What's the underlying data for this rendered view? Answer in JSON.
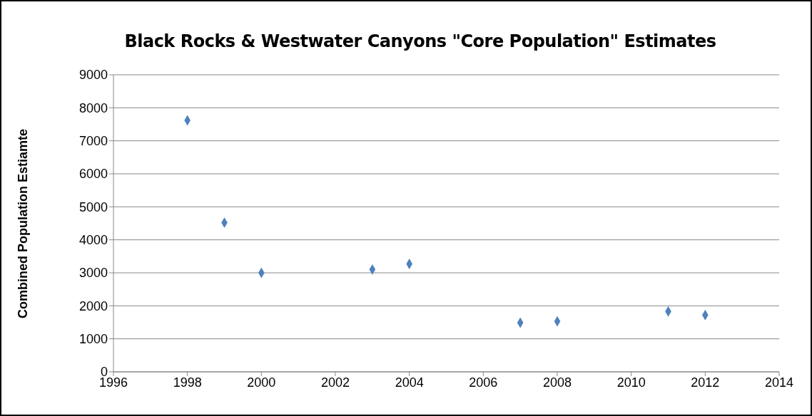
{
  "chart_data": {
    "type": "scatter",
    "title": "Black Rocks & Westwater Canyons \"Core Population\" Estimates",
    "ylabel": "Combined Population Estiamte",
    "x": [
      1998,
      1999,
      2000,
      2003,
      2004,
      2007,
      2008,
      2011,
      2012
    ],
    "series": [
      {
        "color": "#4f81bd",
        "values": [
          7620,
          4520,
          3000,
          3100,
          3270,
          1490,
          1530,
          1830,
          1720
        ]
      }
    ],
    "xlim": [
      1996,
      2014
    ],
    "xticks": [
      1996,
      1998,
      2000,
      2002,
      2004,
      2006,
      2008,
      2010,
      2012,
      2014
    ],
    "ylim": [
      0,
      9000
    ],
    "yticks": [
      0,
      1000,
      2000,
      3000,
      4000,
      5000,
      6000,
      7000,
      8000,
      9000
    ],
    "grid": "y",
    "marker": "diamond",
    "legend": false
  }
}
